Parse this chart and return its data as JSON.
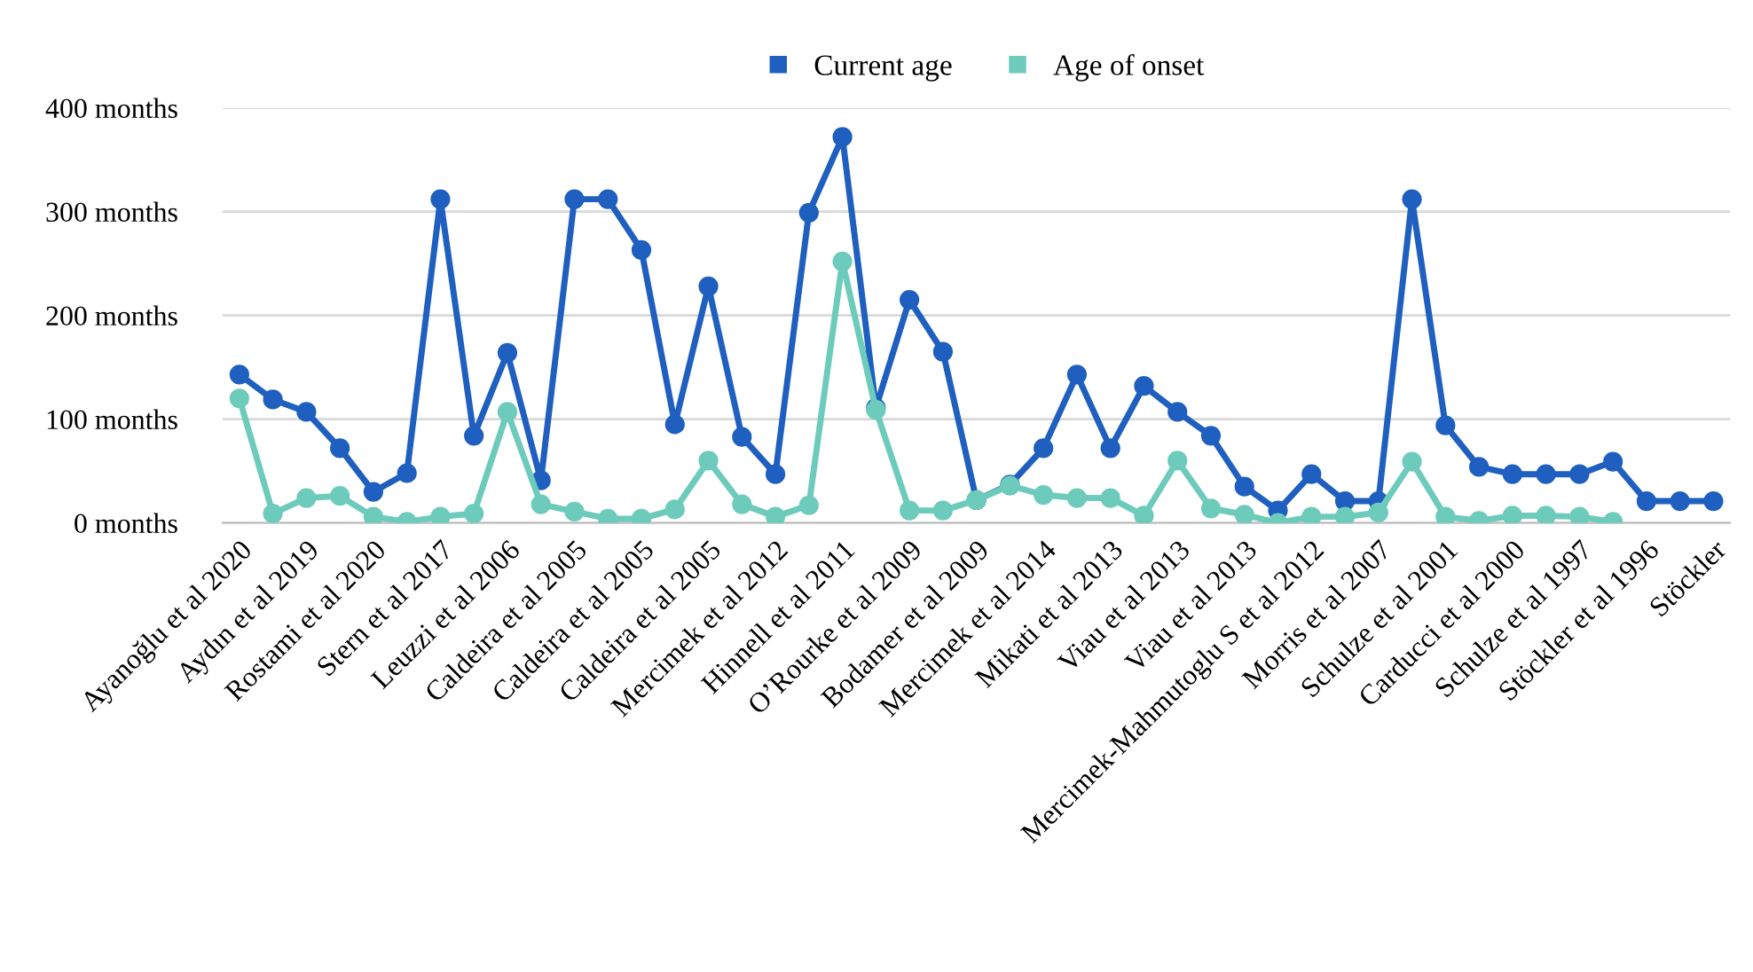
{
  "chart_data": {
    "type": "line",
    "categories": [
      "Ayanoğlu et al 2020",
      null,
      "Aydın et al 2019",
      null,
      "Rostami et al 2020",
      null,
      "Stern et al 2017",
      null,
      "Leuzzi et al 2006",
      null,
      "Caldeira et al 2005",
      null,
      "Caldeira et al 2005",
      null,
      "Caldeira et al 2005",
      null,
      "Mercimek et al 2012",
      null,
      "Hinnell et al 2011",
      null,
      "O’Rourke et al 2009",
      null,
      "Bodamer et al 2009",
      null,
      "Mercimek et al 2014",
      null,
      "Mikati et al 2013",
      null,
      "Viau et al 2013",
      null,
      "Viau et al 2013",
      null,
      "Mercimek-Mahmutoglu S et al 2012",
      null,
      "Morris et al 2007",
      null,
      "Schulze et al 2001",
      null,
      "Carducci et al 2000",
      null,
      "Schulze et al 1997",
      null,
      "Stöckler et al 1996",
      null,
      "Stöckler"
    ],
    "series": [
      {
        "name": "Current age",
        "color": "#1f5fbf",
        "values": [
          143,
          119,
          107,
          72,
          30,
          48,
          312,
          84,
          164,
          41,
          312,
          312,
          263,
          95,
          228,
          83,
          47,
          299,
          372,
          111,
          215,
          165,
          22,
          37,
          72,
          143,
          72,
          132,
          107,
          84,
          35,
          12,
          47,
          21,
          21,
          312,
          94,
          54,
          47,
          47,
          47,
          59,
          21,
          21,
          21
        ]
      },
      {
        "name": "Age of onset",
        "color": "#6dcbbb",
        "values": [
          120,
          9,
          24,
          26,
          6,
          1,
          6,
          9,
          107,
          18,
          11,
          4,
          4,
          13,
          60,
          18,
          6,
          17,
          252,
          109,
          12,
          12,
          22,
          36,
          27,
          24,
          24,
          7,
          60,
          14,
          8,
          0,
          6,
          6,
          10,
          59,
          6,
          2,
          7,
          7,
          6,
          1,
          null,
          null,
          null
        ]
      }
    ],
    "ylim": [
      0,
      400
    ],
    "yticks": [
      {
        "value": 0,
        "label": "0 months"
      },
      {
        "value": 100,
        "label": "100 months"
      },
      {
        "value": 200,
        "label": "200 months"
      },
      {
        "value": 300,
        "label": "300 months"
      },
      {
        "value": 400,
        "label": "400 months"
      }
    ],
    "grid": "y",
    "legend": "top",
    "marker": "circle",
    "line_style": "solid"
  }
}
